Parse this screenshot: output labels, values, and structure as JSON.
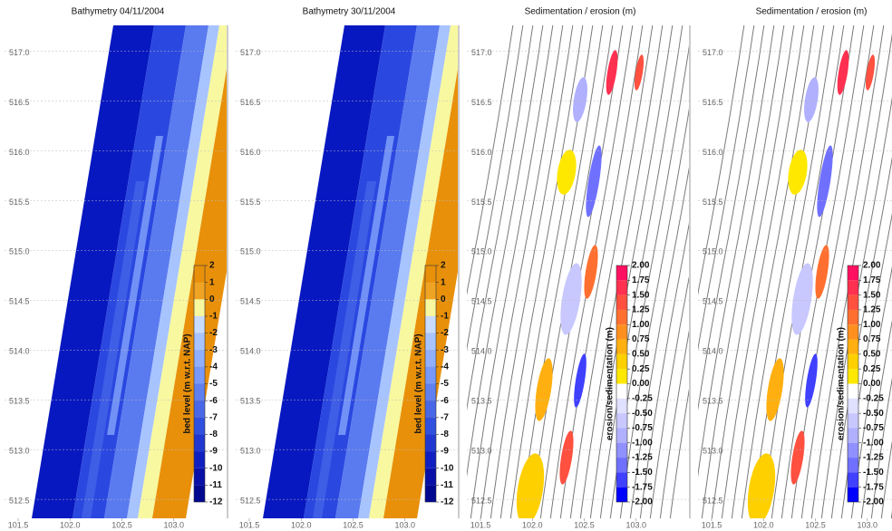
{
  "chart_data": [
    {
      "type": "contour",
      "title": "Bathymetry 04/11/2004",
      "xlim": [
        101.5,
        103.5
      ],
      "ylim": [
        512.31,
        517.26
      ],
      "xticks": [
        101.5,
        {
          "value": 102,
          "label": "102.0"
        },
        102.5,
        {
          "value": 103,
          "label": "103.0"
        }
      ],
      "yticks": [
        {
          "value": 517,
          "label": "517.0"
        },
        516.5,
        {
          "value": 516,
          "label": "516.0"
        },
        515.5,
        {
          "value": 515,
          "label": "515.0"
        },
        514.5,
        {
          "value": 514,
          "label": "514.0"
        },
        513.5,
        {
          "value": 513,
          "label": "513.0"
        },
        512.5
      ],
      "grid": true,
      "colorbar": {
        "label": "bed level (m w.r.t. NAP)",
        "ticks": [
          2,
          1,
          0,
          -1,
          -2,
          -3,
          -4,
          -5,
          -6,
          -7,
          -8,
          -9,
          -10,
          -11,
          -12
        ],
        "colors": [
          "#e8900a",
          "#f0a424",
          "#f8f8a0",
          "#c8dcff",
          "#a8c4ff",
          "#90b0ff",
          "#7898f8",
          "#6080f0",
          "#4868e8",
          "#3050e0",
          "#2038d0",
          "#1020c0",
          "#0810a8",
          "#000890"
        ]
      }
    },
    {
      "type": "contour",
      "title": "Bathymetry 30/11/2004",
      "xlim": [
        101.5,
        103.5
      ],
      "ylim": [
        512.31,
        517.26
      ],
      "xticks": [
        101.5,
        {
          "value": 102,
          "label": "102.0"
        },
        102.5,
        {
          "value": 103,
          "label": "103.0"
        }
      ],
      "yticks": [
        {
          "value": 517,
          "label": "517.0"
        },
        516.5,
        {
          "value": 516,
          "label": "516.0"
        },
        515.5,
        {
          "value": 515,
          "label": "515.0"
        },
        514.5,
        {
          "value": 514,
          "label": "514.0"
        },
        513.5,
        {
          "value": 513,
          "label": "513.0"
        },
        512.5
      ],
      "grid": true,
      "colorbar": {
        "label": "bed level (m w.r.t. NAP)",
        "ticks": [
          2,
          1,
          0,
          -1,
          -2,
          -3,
          -4,
          -5,
          -6,
          -7,
          -8,
          -9,
          -10,
          -11,
          -12
        ],
        "colors": [
          "#e8900a",
          "#f0a424",
          "#f8f8a0",
          "#c8dcff",
          "#a8c4ff",
          "#90b0ff",
          "#7898f8",
          "#6080f0",
          "#4868e8",
          "#3050e0",
          "#2038d0",
          "#1020c0",
          "#0810a8",
          "#000890"
        ]
      }
    },
    {
      "type": "contour",
      "title": "Sedimentation / erosion (m)",
      "xlim": [
        101.5,
        103.5
      ],
      "ylim": [
        512.31,
        517.26
      ],
      "xticks": [
        101.5,
        {
          "value": 102,
          "label": "102.0"
        },
        102.5,
        {
          "value": 103,
          "label": "103.0"
        }
      ],
      "yticks": [
        {
          "value": 517,
          "label": "517.0"
        },
        516.5,
        {
          "value": 516,
          "label": "516.0"
        },
        515.5,
        {
          "value": 515,
          "label": "515.0"
        },
        514.5,
        {
          "value": 514,
          "label": "514.0"
        },
        513.5,
        {
          "value": 513,
          "label": "513.0"
        },
        512.5
      ],
      "grid": true,
      "colorbar": {
        "label": "erosion/sedimentation (m)",
        "ticks": [
          {
            "value": 2,
            "label": "2.00"
          },
          1.75,
          {
            "value": 1.5,
            "label": "1.50"
          },
          1.25,
          {
            "value": 1,
            "label": "1.00"
          },
          0.75,
          {
            "value": 0.5,
            "label": "0.50"
          },
          0.25,
          {
            "value": 0,
            "label": "0.00"
          },
          -0.25,
          {
            "value": -0.5,
            "label": "-0.50"
          },
          -0.75,
          {
            "value": -1,
            "label": "-1.00"
          },
          -1.25,
          {
            "value": -1.5,
            "label": "-1.50"
          },
          -1.75,
          {
            "value": -2,
            "label": "-2.00"
          }
        ],
        "colors": [
          "#ff1060",
          "#ff3050",
          "#ff5040",
          "#ff7030",
          "#ff9020",
          "#ffb010",
          "#ffd000",
          "#ffe800",
          "#ffffff",
          "#e0e0ff",
          "#c8c8ff",
          "#b0b0ff",
          "#9090ff",
          "#7070ff",
          "#4040ff",
          "#0000ff"
        ]
      }
    },
    {
      "type": "contour",
      "title": "Sedimentation / erosion (m)",
      "xlim": [
        101.5,
        103.5
      ],
      "ylim": [
        512.31,
        517.26
      ],
      "xticks": [
        101.5,
        {
          "value": 102,
          "label": "102.0"
        },
        102.5,
        {
          "value": 103,
          "label": "103.0"
        }
      ],
      "yticks": [
        {
          "value": 517,
          "label": "517.0"
        },
        516.5,
        {
          "value": 516,
          "label": "516.0"
        },
        515.5,
        {
          "value": 515,
          "label": "515.0"
        },
        514.5,
        {
          "value": 514,
          "label": "514.0"
        },
        513.5,
        {
          "value": 513,
          "label": "513.0"
        },
        512.5
      ],
      "grid": true,
      "colorbar": {
        "label": "erosion/sedimentation (m)",
        "ticks": [
          {
            "value": 2,
            "label": "2.00"
          },
          1.75,
          {
            "value": 1.5,
            "label": "1.50"
          },
          1.25,
          {
            "value": 1,
            "label": "1.00"
          },
          0.75,
          {
            "value": 0.5,
            "label": "0.50"
          },
          0.25,
          {
            "value": 0,
            "label": "0.00"
          },
          -0.25,
          {
            "value": -0.5,
            "label": "-0.50"
          },
          -0.75,
          {
            "value": -1,
            "label": "-1.00"
          },
          -1.25,
          {
            "value": -1.5,
            "label": "-1.50"
          },
          -1.75,
          {
            "value": -2,
            "label": "-2.00"
          }
        ],
        "colors": [
          "#ff1060",
          "#ff3050",
          "#ff5040",
          "#ff7030",
          "#ff9020",
          "#ffb010",
          "#ffd000",
          "#ffe800",
          "#ffffff",
          "#e0e0ff",
          "#c8c8ff",
          "#b0b0ff",
          "#9090ff",
          "#7070ff",
          "#4040ff",
          "#0000ff"
        ]
      }
    }
  ]
}
